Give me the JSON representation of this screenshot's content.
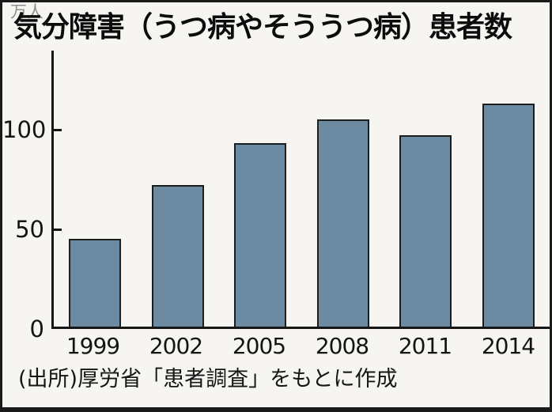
{
  "frame": {
    "background": "#f6f5f1",
    "border_color": "#1a1a1a"
  },
  "header": {
    "title": "気分障害（うつ病やそううつ病）患者数"
  },
  "y_axis": {
    "unit": "万人",
    "ticks": [
      0,
      50,
      100
    ]
  },
  "footer": {
    "source": "(出所)厚労省「患者調査」をもとに作成"
  },
  "chart_data": {
    "type": "bar",
    "title": "気分障害（うつ病やそううつ病）患者数",
    "categories": [
      "1999",
      "2002",
      "2005",
      "2008",
      "2011",
      "2014"
    ],
    "values": [
      44,
      71,
      92,
      104,
      96,
      112
    ],
    "xlabel": "",
    "ylabel": "万人",
    "ylim": [
      0,
      140
    ],
    "yticks": [
      0,
      50,
      100
    ],
    "legend": false,
    "grid": false,
    "bar_color": "#6d8aa3",
    "bar_border_color": "#1d1d1d",
    "axis_color": "#161616"
  }
}
